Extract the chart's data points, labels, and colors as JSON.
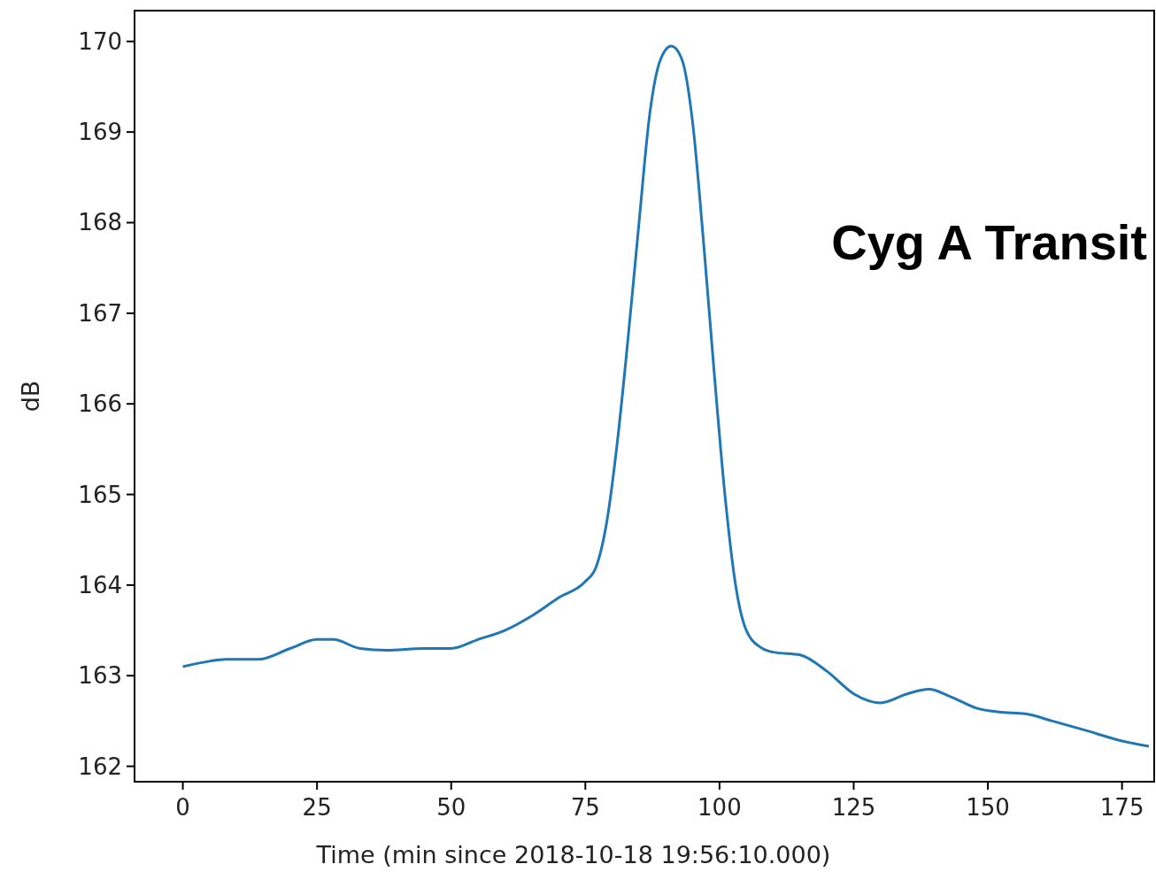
{
  "chart_data": {
    "type": "line",
    "xlabel": "Time (min since 2018-10-18 19:56:10.000)",
    "ylabel": "dB",
    "annotations": [
      "Cyg A Transit"
    ],
    "xlim": [
      -9,
      181
    ],
    "ylim": [
      161.83,
      170.34
    ],
    "xticks": [
      0,
      25,
      50,
      75,
      100,
      125,
      150,
      175
    ],
    "yticks": [
      162,
      163,
      164,
      165,
      166,
      167,
      168,
      169,
      170
    ],
    "grid": false,
    "series": [
      {
        "color": "#1f77b4",
        "x": [
          0,
          5,
          8,
          14,
          20,
          25,
          28,
          33,
          38,
          45,
          50,
          55,
          60,
          65,
          70,
          75,
          77,
          79,
          81,
          83,
          85,
          87,
          89,
          91,
          93,
          95,
          97,
          99,
          101,
          103,
          105,
          108,
          110,
          115,
          120,
          125,
          130,
          135,
          139,
          143,
          148,
          152,
          157,
          162,
          168,
          175,
          180
        ],
        "values": [
          163.1,
          163.16,
          163.18,
          163.18,
          163.3,
          163.4,
          163.4,
          163.3,
          163.28,
          163.3,
          163.3,
          163.4,
          163.5,
          163.66,
          163.86,
          164.04,
          164.2,
          164.7,
          165.6,
          166.75,
          168.0,
          169.2,
          169.8,
          169.95,
          169.8,
          169.1,
          167.8,
          166.35,
          165.0,
          164.0,
          163.5,
          163.3,
          163.26,
          163.23,
          163.05,
          162.8,
          162.7,
          162.8,
          162.85,
          162.77,
          162.64,
          162.6,
          162.58,
          162.5,
          162.4,
          162.28,
          162.22
        ]
      }
    ]
  }
}
